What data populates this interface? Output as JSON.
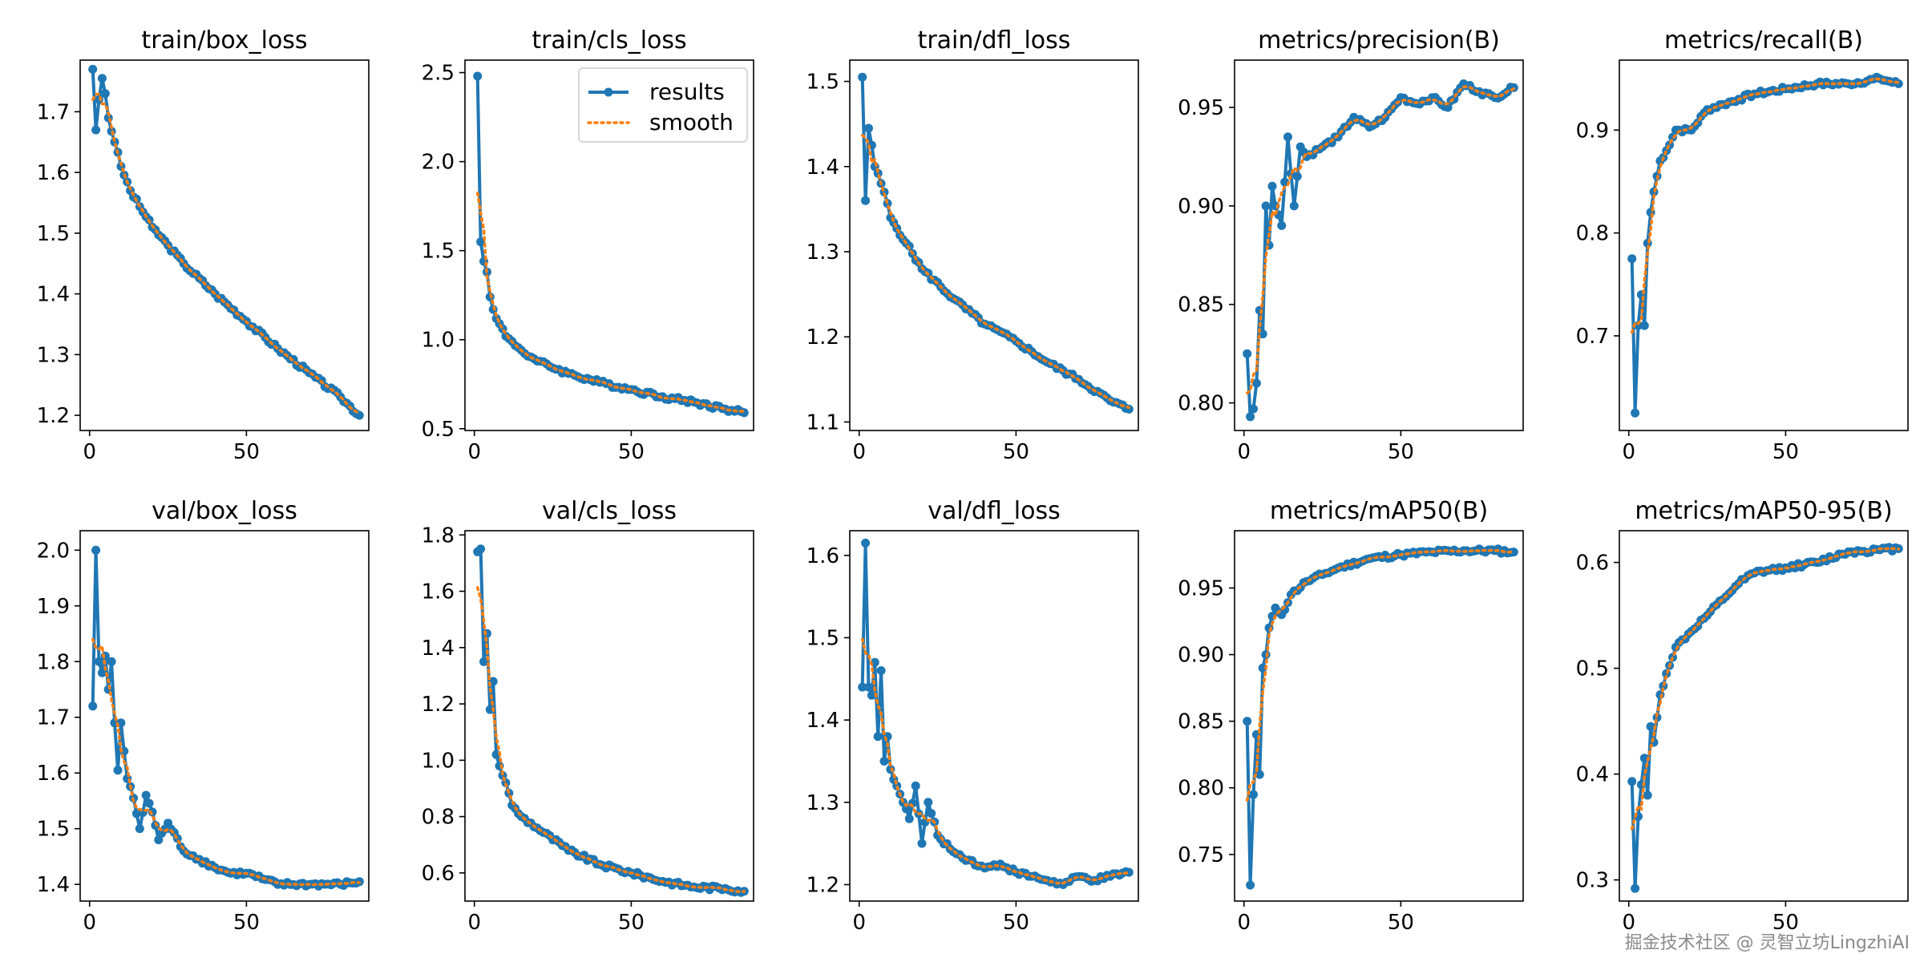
{
  "watermark": "掘金技术社区 @ 灵智立坊LingzhiAI",
  "colors": {
    "results": "#1f77b4",
    "smooth": "#ff7f0e",
    "axis": "#000000"
  },
  "legend": {
    "results_label": "results",
    "smooth_label": "smooth"
  },
  "chart_data": [
    {
      "type": "line",
      "title": "train/box_loss",
      "xlabel": "",
      "ylabel": "",
      "xlim": [
        -3,
        89
      ],
      "ylim": [
        1.175,
        1.785
      ],
      "xticks": [
        0,
        50
      ],
      "yticks": [
        1.2,
        1.3,
        1.4,
        1.5,
        1.6,
        1.7
      ],
      "ytick_labels": [
        "1.2",
        "1.3",
        "1.4",
        "1.5",
        "1.6",
        "1.7"
      ],
      "anchors": [
        [
          1,
          1.77
        ],
        [
          2,
          1.67
        ],
        [
          3,
          1.72
        ],
        [
          4,
          1.755
        ],
        [
          5,
          1.73
        ],
        [
          6,
          1.69
        ],
        [
          8,
          1.65
        ],
        [
          10,
          1.61
        ],
        [
          13,
          1.57
        ],
        [
          20,
          1.51
        ],
        [
          25,
          1.48
        ],
        [
          30,
          1.45
        ],
        [
          40,
          1.4
        ],
        [
          50,
          1.355
        ],
        [
          60,
          1.31
        ],
        [
          70,
          1.27
        ],
        [
          80,
          1.23
        ],
        [
          86,
          1.2
        ]
      ],
      "legend": false
    },
    {
      "type": "line",
      "title": "train/cls_loss",
      "xlabel": "",
      "ylabel": "",
      "xlim": [
        -3,
        89
      ],
      "ylim": [
        0.49,
        2.57
      ],
      "xticks": [
        0,
        50
      ],
      "yticks": [
        0.5,
        1.0,
        1.5,
        2.0,
        2.5
      ],
      "ytick_labels": [
        "0.5",
        "1.0",
        "1.5",
        "2.0",
        "2.5"
      ],
      "anchors": [
        [
          1,
          2.48
        ],
        [
          2,
          1.55
        ],
        [
          3,
          1.44
        ],
        [
          4,
          1.38
        ],
        [
          5,
          1.24
        ],
        [
          6,
          1.17
        ],
        [
          8,
          1.09
        ],
        [
          10,
          1.02
        ],
        [
          15,
          0.94
        ],
        [
          20,
          0.88
        ],
        [
          30,
          0.81
        ],
        [
          40,
          0.76
        ],
        [
          50,
          0.72
        ],
        [
          60,
          0.68
        ],
        [
          70,
          0.65
        ],
        [
          80,
          0.61
        ],
        [
          86,
          0.59
        ]
      ],
      "legend": true,
      "legend_position": "top-right"
    },
    {
      "type": "line",
      "title": "train/dfl_loss",
      "xlabel": "",
      "ylabel": "",
      "xlim": [
        -3,
        89
      ],
      "ylim": [
        1.09,
        1.525
      ],
      "xticks": [
        0,
        50
      ],
      "yticks": [
        1.1,
        1.2,
        1.3,
        1.4,
        1.5
      ],
      "ytick_labels": [
        "1.1",
        "1.2",
        "1.3",
        "1.4",
        "1.5"
      ],
      "anchors": [
        [
          1,
          1.505
        ],
        [
          2,
          1.36
        ],
        [
          3,
          1.445
        ],
        [
          4,
          1.425
        ],
        [
          5,
          1.4
        ],
        [
          8,
          1.37
        ],
        [
          10,
          1.34
        ],
        [
          15,
          1.31
        ],
        [
          20,
          1.28
        ],
        [
          30,
          1.245
        ],
        [
          40,
          1.215
        ],
        [
          50,
          1.195
        ],
        [
          60,
          1.17
        ],
        [
          70,
          1.15
        ],
        [
          80,
          1.125
        ],
        [
          86,
          1.115
        ]
      ],
      "legend": false
    },
    {
      "type": "line",
      "title": "metrics/precision(B)",
      "xlabel": "",
      "ylabel": "",
      "xlim": [
        -3,
        89
      ],
      "ylim": [
        0.786,
        0.974
      ],
      "xticks": [
        0,
        50
      ],
      "yticks": [
        0.8,
        0.85,
        0.9,
        0.95
      ],
      "ytick_labels": [
        "0.80",
        "0.85",
        "0.90",
        "0.95"
      ],
      "anchors": [
        [
          1,
          0.825
        ],
        [
          2,
          0.793
        ],
        [
          3,
          0.797
        ],
        [
          4,
          0.81
        ],
        [
          5,
          0.847
        ],
        [
          6,
          0.835
        ],
        [
          7,
          0.9
        ],
        [
          8,
          0.88
        ],
        [
          9,
          0.91
        ],
        [
          10,
          0.9
        ],
        [
          12,
          0.89
        ],
        [
          14,
          0.935
        ],
        [
          16,
          0.9
        ],
        [
          18,
          0.93
        ],
        [
          20,
          0.925
        ],
        [
          25,
          0.93
        ],
        [
          30,
          0.935
        ],
        [
          35,
          0.945
        ],
        [
          40,
          0.94
        ],
        [
          45,
          0.945
        ],
        [
          50,
          0.955
        ],
        [
          55,
          0.952
        ],
        [
          60,
          0.955
        ],
        [
          65,
          0.95
        ],
        [
          70,
          0.962
        ],
        [
          75,
          0.958
        ],
        [
          80,
          0.955
        ],
        [
          86,
          0.96
        ]
      ],
      "legend": false
    },
    {
      "type": "line",
      "title": "metrics/recall(B)",
      "xlabel": "",
      "ylabel": "",
      "xlim": [
        -3,
        89
      ],
      "ylim": [
        0.608,
        0.968
      ],
      "xticks": [
        0,
        50
      ],
      "yticks": [
        0.7,
        0.8,
        0.9
      ],
      "ytick_labels": [
        "0.7",
        "0.8",
        "0.9"
      ],
      "anchors": [
        [
          1,
          0.775
        ],
        [
          2,
          0.625
        ],
        [
          3,
          0.71
        ],
        [
          4,
          0.74
        ],
        [
          5,
          0.71
        ],
        [
          6,
          0.79
        ],
        [
          7,
          0.82
        ],
        [
          8,
          0.84
        ],
        [
          10,
          0.87
        ],
        [
          12,
          0.88
        ],
        [
          15,
          0.9
        ],
        [
          20,
          0.9
        ],
        [
          25,
          0.92
        ],
        [
          30,
          0.925
        ],
        [
          35,
          0.93
        ],
        [
          40,
          0.935
        ],
        [
          50,
          0.94
        ],
        [
          60,
          0.945
        ],
        [
          70,
          0.945
        ],
        [
          80,
          0.95
        ],
        [
          86,
          0.945
        ]
      ],
      "legend": false
    },
    {
      "type": "line",
      "title": "val/box_loss",
      "xlabel": "",
      "ylabel": "",
      "xlim": [
        -3,
        89
      ],
      "ylim": [
        1.37,
        2.035
      ],
      "xticks": [
        0,
        50
      ],
      "yticks": [
        1.4,
        1.5,
        1.6,
        1.7,
        1.8,
        1.9,
        2.0
      ],
      "ytick_labels": [
        "1.4",
        "1.5",
        "1.6",
        "1.7",
        "1.8",
        "1.9",
        "2.0"
      ],
      "anchors": [
        [
          1,
          1.72
        ],
        [
          2,
          2.0
        ],
        [
          3,
          1.8
        ],
        [
          4,
          1.78
        ],
        [
          5,
          1.81
        ],
        [
          6,
          1.75
        ],
        [
          7,
          1.8
        ],
        [
          8,
          1.69
        ],
        [
          9,
          1.605
        ],
        [
          10,
          1.69
        ],
        [
          12,
          1.59
        ],
        [
          14,
          1.555
        ],
        [
          16,
          1.5
        ],
        [
          18,
          1.56
        ],
        [
          20,
          1.53
        ],
        [
          22,
          1.48
        ],
        [
          25,
          1.51
        ],
        [
          30,
          1.46
        ],
        [
          35,
          1.445
        ],
        [
          40,
          1.43
        ],
        [
          45,
          1.42
        ],
        [
          50,
          1.42
        ],
        [
          55,
          1.41
        ],
        [
          60,
          1.4
        ],
        [
          70,
          1.4
        ],
        [
          80,
          1.4
        ],
        [
          86,
          1.405
        ]
      ],
      "legend": false
    },
    {
      "type": "line",
      "title": "val/cls_loss",
      "xlabel": "",
      "ylabel": "",
      "xlim": [
        -3,
        89
      ],
      "ylim": [
        0.5,
        1.815
      ],
      "xticks": [
        0,
        50
      ],
      "yticks": [
        0.6,
        0.8,
        1.0,
        1.2,
        1.4,
        1.6,
        1.8
      ],
      "ytick_labels": [
        "0.6",
        "0.8",
        "1.0",
        "1.2",
        "1.4",
        "1.6",
        "1.8"
      ],
      "anchors": [
        [
          1,
          1.74
        ],
        [
          2,
          1.75
        ],
        [
          3,
          1.35
        ],
        [
          4,
          1.45
        ],
        [
          5,
          1.18
        ],
        [
          6,
          1.28
        ],
        [
          7,
          1.02
        ],
        [
          8,
          0.98
        ],
        [
          10,
          0.92
        ],
        [
          12,
          0.84
        ],
        [
          15,
          0.8
        ],
        [
          20,
          0.76
        ],
        [
          30,
          0.68
        ],
        [
          40,
          0.63
        ],
        [
          50,
          0.6
        ],
        [
          60,
          0.57
        ],
        [
          70,
          0.55
        ],
        [
          80,
          0.545
        ],
        [
          86,
          0.535
        ]
      ],
      "legend": false
    },
    {
      "type": "line",
      "title": "val/dfl_loss",
      "xlabel": "",
      "ylabel": "",
      "xlim": [
        -3,
        89
      ],
      "ylim": [
        1.18,
        1.63
      ],
      "xticks": [
        0,
        50
      ],
      "yticks": [
        1.2,
        1.3,
        1.4,
        1.5,
        1.6
      ],
      "ytick_labels": [
        "1.2",
        "1.3",
        "1.4",
        "1.5",
        "1.6"
      ],
      "anchors": [
        [
          1,
          1.44
        ],
        [
          2,
          1.615
        ],
        [
          3,
          1.44
        ],
        [
          4,
          1.43
        ],
        [
          5,
          1.47
        ],
        [
          6,
          1.38
        ],
        [
          7,
          1.46
        ],
        [
          8,
          1.35
        ],
        [
          9,
          1.38
        ],
        [
          10,
          1.34
        ],
        [
          12,
          1.32
        ],
        [
          14,
          1.3
        ],
        [
          16,
          1.28
        ],
        [
          18,
          1.32
        ],
        [
          20,
          1.25
        ],
        [
          22,
          1.3
        ],
        [
          25,
          1.26
        ],
        [
          30,
          1.24
        ],
        [
          35,
          1.23
        ],
        [
          40,
          1.22
        ],
        [
          45,
          1.225
        ],
        [
          50,
          1.215
        ],
        [
          55,
          1.21
        ],
        [
          60,
          1.205
        ],
        [
          65,
          1.2
        ],
        [
          70,
          1.21
        ],
        [
          75,
          1.205
        ],
        [
          80,
          1.21
        ],
        [
          86,
          1.215
        ]
      ],
      "legend": false
    },
    {
      "type": "line",
      "title": "metrics/mAP50(B)",
      "xlabel": "",
      "ylabel": "",
      "xlim": [
        -3,
        89
      ],
      "ylim": [
        0.715,
        0.993
      ],
      "xticks": [
        0,
        50
      ],
      "yticks": [
        0.75,
        0.8,
        0.85,
        0.9,
        0.95
      ],
      "ytick_labels": [
        "0.75",
        "0.80",
        "0.85",
        "0.90",
        "0.95"
      ],
      "anchors": [
        [
          1,
          0.85
        ],
        [
          2,
          0.727
        ],
        [
          3,
          0.795
        ],
        [
          4,
          0.84
        ],
        [
          5,
          0.81
        ],
        [
          6,
          0.89
        ],
        [
          7,
          0.9
        ],
        [
          8,
          0.92
        ],
        [
          10,
          0.935
        ],
        [
          12,
          0.93
        ],
        [
          15,
          0.945
        ],
        [
          20,
          0.955
        ],
        [
          25,
          0.96
        ],
        [
          30,
          0.965
        ],
        [
          40,
          0.972
        ],
        [
          50,
          0.975
        ],
        [
          60,
          0.977
        ],
        [
          70,
          0.978
        ],
        [
          80,
          0.978
        ],
        [
          86,
          0.977
        ]
      ],
      "legend": false
    },
    {
      "type": "line",
      "title": "metrics/mAP50-95(B)",
      "xlabel": "",
      "ylabel": "",
      "xlim": [
        -3,
        89
      ],
      "ylim": [
        0.28,
        0.63
      ],
      "xticks": [
        0,
        50
      ],
      "yticks": [
        0.3,
        0.4,
        0.5,
        0.6
      ],
      "ytick_labels": [
        "0.3",
        "0.4",
        "0.5",
        "0.6"
      ],
      "anchors": [
        [
          1,
          0.393
        ],
        [
          2,
          0.292
        ],
        [
          3,
          0.36
        ],
        [
          4,
          0.39
        ],
        [
          5,
          0.415
        ],
        [
          6,
          0.38
        ],
        [
          7,
          0.445
        ],
        [
          8,
          0.43
        ],
        [
          10,
          0.475
        ],
        [
          12,
          0.495
        ],
        [
          15,
          0.52
        ],
        [
          20,
          0.535
        ],
        [
          25,
          0.55
        ],
        [
          30,
          0.565
        ],
        [
          35,
          0.58
        ],
        [
          40,
          0.59
        ],
        [
          50,
          0.595
        ],
        [
          60,
          0.6
        ],
        [
          70,
          0.61
        ],
        [
          80,
          0.612
        ],
        [
          86,
          0.613
        ]
      ],
      "legend": false
    }
  ]
}
